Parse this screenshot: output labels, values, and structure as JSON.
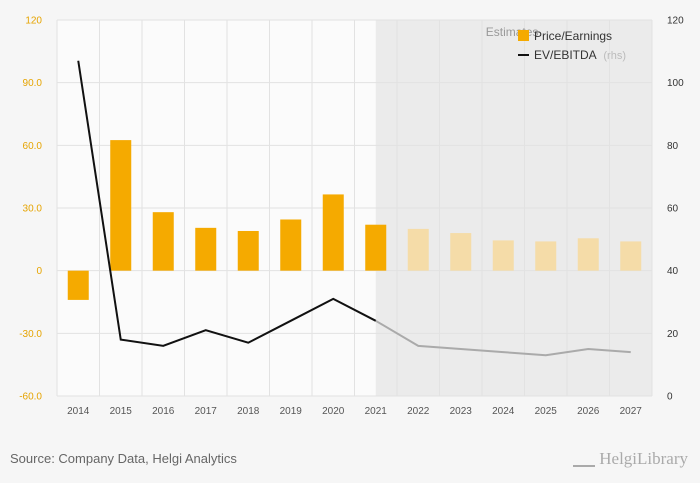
{
  "chart_data": {
    "type": "bar",
    "categories": [
      "2014",
      "2015",
      "2016",
      "2017",
      "2018",
      "2019",
      "2020",
      "2021",
      "2022",
      "2023",
      "2024",
      "2025",
      "2026",
      "2027"
    ],
    "estimate_start_index": 8,
    "estimates_label": "Estimates",
    "series": [
      {
        "name": "Price/Earnings",
        "type": "bar",
        "axis": "left",
        "color": "#f5aa00",
        "estimate_color": "#f5dca8",
        "values": [
          -14,
          62.5,
          28,
          20.5,
          19,
          24.5,
          36.5,
          22,
          20,
          18,
          14.5,
          14,
          15.5,
          14
        ]
      },
      {
        "name": "EV/EBITDA",
        "name_suffix": "(rhs)",
        "type": "line",
        "axis": "right",
        "color": "#111111",
        "estimate_color": "#aaaaaa",
        "values": [
          107,
          18,
          16,
          21,
          17,
          24,
          31,
          24,
          16,
          15,
          14,
          13,
          15,
          14
        ]
      }
    ],
    "yleft": {
      "min": -60,
      "max": 120,
      "ticks": [
        "-60.0",
        "-30.0",
        "0",
        "30.0",
        "60.0",
        "90.0",
        "120"
      ],
      "tick_values": [
        -60,
        -30,
        0,
        30,
        60,
        90,
        120
      ]
    },
    "yright": {
      "min": 0,
      "max": 120,
      "ticks": [
        "0",
        "20",
        "40",
        "60",
        "80",
        "100",
        "120"
      ],
      "tick_values": [
        0,
        20,
        40,
        60,
        80,
        100,
        120
      ]
    },
    "grid": true,
    "legend_position": "top-right"
  },
  "footer": {
    "source": "Source: Company Data, Helgi Analytics",
    "logo": "HelgiLibrary"
  }
}
